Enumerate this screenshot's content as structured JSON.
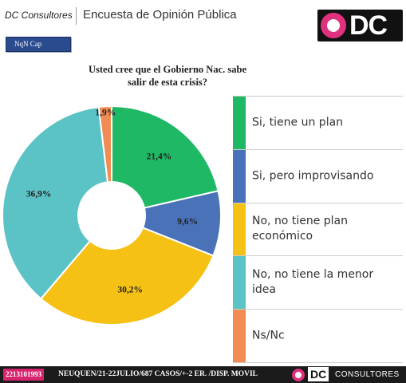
{
  "header": {
    "brand": "DC Consultores",
    "title": "Encuesta de Opinión Pública",
    "logo_letters": "DC",
    "logo_colors": {
      "ring": "#e0317e",
      "background": "#111111"
    }
  },
  "tag": {
    "label": "NqN Cap"
  },
  "chart_data": {
    "type": "pie",
    "title": "Usted cree que el Gobierno Nac. sabe salir de esta crisis?",
    "donut": true,
    "slices": [
      {
        "label": "Si, tiene un plan",
        "value": 21.4,
        "value_label": "21,4%",
        "color": "#1fb864"
      },
      {
        "label": "Si, pero improvisando",
        "value": 9.6,
        "value_label": "9,6%",
        "color": "#4a72b8"
      },
      {
        "label": "No, no tiene plan económico",
        "value": 30.2,
        "value_label": "30,2%",
        "color": "#f6c115"
      },
      {
        "label": "No, no tiene la menor idea",
        "value": 36.9,
        "value_label": "36,9%",
        "color": "#5bc3c5"
      },
      {
        "label": "Ns/Nc",
        "value": 1.9,
        "value_label": "1,9%",
        "color": "#f28c55"
      }
    ],
    "legend_placement": "right"
  },
  "footer": {
    "phone": "2213101993",
    "info": "NEUQUEN/21-22JULIO/687 CASOS/+-2 ER. /DISP. MOVIL",
    "logo_letters": "DC",
    "brand": "CONSULTORES"
  }
}
